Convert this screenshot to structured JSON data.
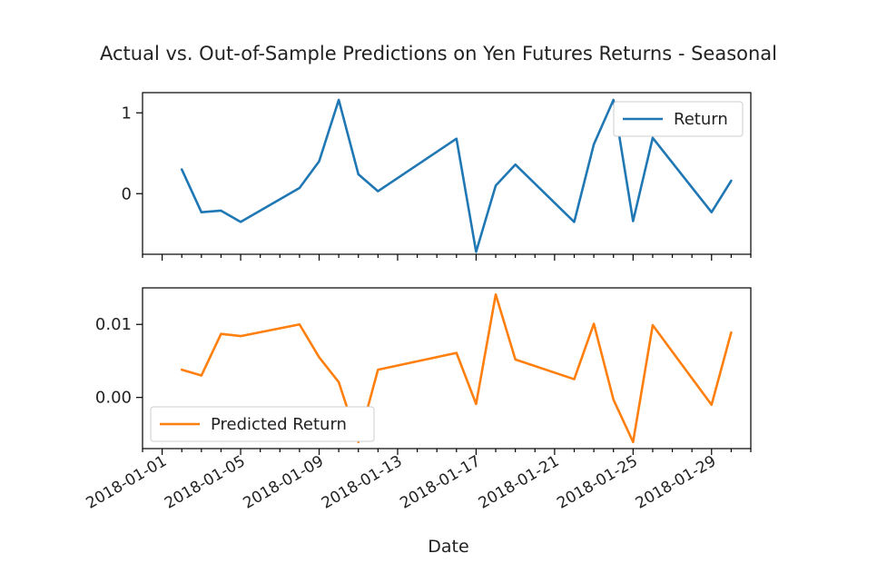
{
  "chart_data": {
    "type": "line",
    "title": "Actual vs. Out-of-Sample Predictions on Yen Futures Returns - Seasonal",
    "xlabel": "Date",
    "x_ticks": [
      "2018-01-01",
      "2018-01-05",
      "2018-01-09",
      "2018-01-13",
      "2018-01-17",
      "2018-01-21",
      "2018-01-25",
      "2018-01-29"
    ],
    "x_range": [
      "2017-12-31",
      "2018-01-31"
    ],
    "panels": [
      {
        "ylim": [
          -0.75,
          1.25
        ],
        "y_ticks": [
          0,
          1
        ],
        "y_tick_labels": [
          "0",
          "1"
        ],
        "legend_position": "upper right",
        "series": [
          {
            "name": "Return",
            "color": "#1f77b4",
            "x": [
              "2018-01-02",
              "2018-01-03",
              "2018-01-04",
              "2018-01-05",
              "2018-01-08",
              "2018-01-09",
              "2018-01-10",
              "2018-01-11",
              "2018-01-12",
              "2018-01-16",
              "2018-01-17",
              "2018-01-18",
              "2018-01-19",
              "2018-01-22",
              "2018-01-23",
              "2018-01-24",
              "2018-01-25",
              "2018-01-26",
              "2018-01-29",
              "2018-01-30"
            ],
            "y": [
              0.3,
              -0.23,
              -0.21,
              -0.35,
              0.07,
              0.4,
              1.16,
              0.24,
              0.03,
              0.68,
              -0.72,
              0.1,
              0.36,
              -0.35,
              0.61,
              1.16,
              -0.34,
              0.69,
              -0.23,
              0.16
            ]
          }
        ]
      },
      {
        "ylim": [
          -0.007,
          0.015
        ],
        "y_ticks": [
          0.0,
          0.01
        ],
        "y_tick_labels": [
          "0.00",
          "0.01"
        ],
        "legend_position": "lower left",
        "series": [
          {
            "name": "Predicted Return",
            "color": "#ff7f0e",
            "x": [
              "2018-01-02",
              "2018-01-03",
              "2018-01-04",
              "2018-01-05",
              "2018-01-08",
              "2018-01-09",
              "2018-01-10",
              "2018-01-11",
              "2018-01-12",
              "2018-01-16",
              "2018-01-17",
              "2018-01-18",
              "2018-01-19",
              "2018-01-22",
              "2018-01-23",
              "2018-01-24",
              "2018-01-25",
              "2018-01-26",
              "2018-01-29",
              "2018-01-30"
            ],
            "y": [
              0.0038,
              0.003,
              0.0087,
              0.0084,
              0.01,
              0.0055,
              0.0021,
              -0.0061,
              0.0038,
              0.0061,
              -0.0009,
              0.0141,
              0.0052,
              0.0025,
              0.0101,
              -0.0003,
              -0.0061,
              0.0099,
              -0.001,
              0.0089
            ]
          }
        ]
      }
    ]
  }
}
